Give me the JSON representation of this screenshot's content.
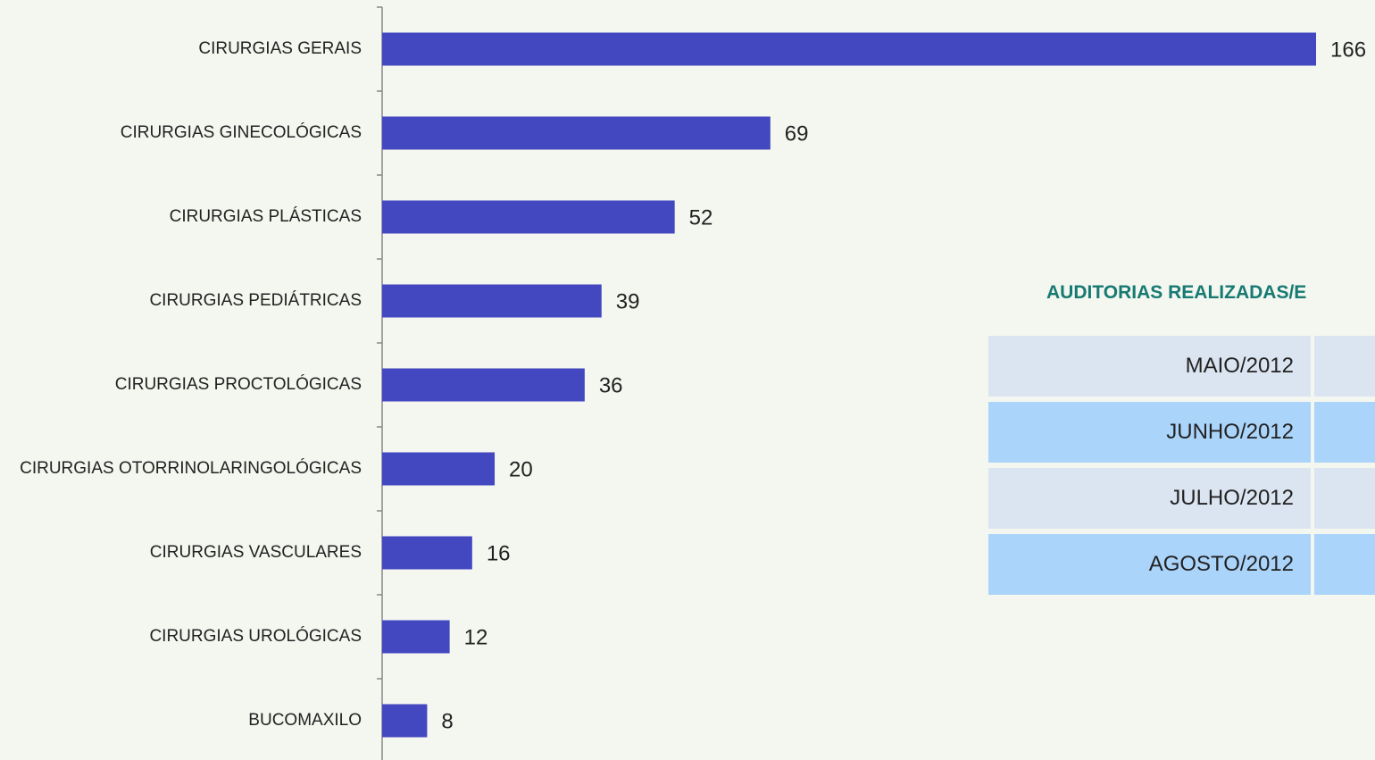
{
  "chart_data": {
    "type": "bar",
    "orientation": "horizontal",
    "categories": [
      "CIRURGIAS GERAIS",
      "CIRURGIAS GINECOLÓGICAS",
      "CIRURGIAS PLÁSTICAS",
      "CIRURGIAS PEDIÁTRICAS",
      "CIRURGIAS PROCTOLÓGICAS",
      "CIRURGIAS OTORRINOLARINGOLÓGICAS",
      "CIRURGIAS VASCULARES",
      "CIRURGIAS UROLÓGICAS",
      "BUCOMAXILO"
    ],
    "values": [
      166,
      69,
      52,
      39,
      36,
      20,
      16,
      12,
      8
    ],
    "color": "#4347c0"
  },
  "table": {
    "title": "AUDITORIAS REALIZADAS/E",
    "rows": [
      [
        "MAIO/2012"
      ],
      [
        "JUNHO/2012"
      ],
      [
        "JULHO/2012"
      ],
      [
        "AGOSTO/2012"
      ]
    ],
    "row_colors": [
      "#dbe5f1",
      "#abd4fb"
    ]
  }
}
